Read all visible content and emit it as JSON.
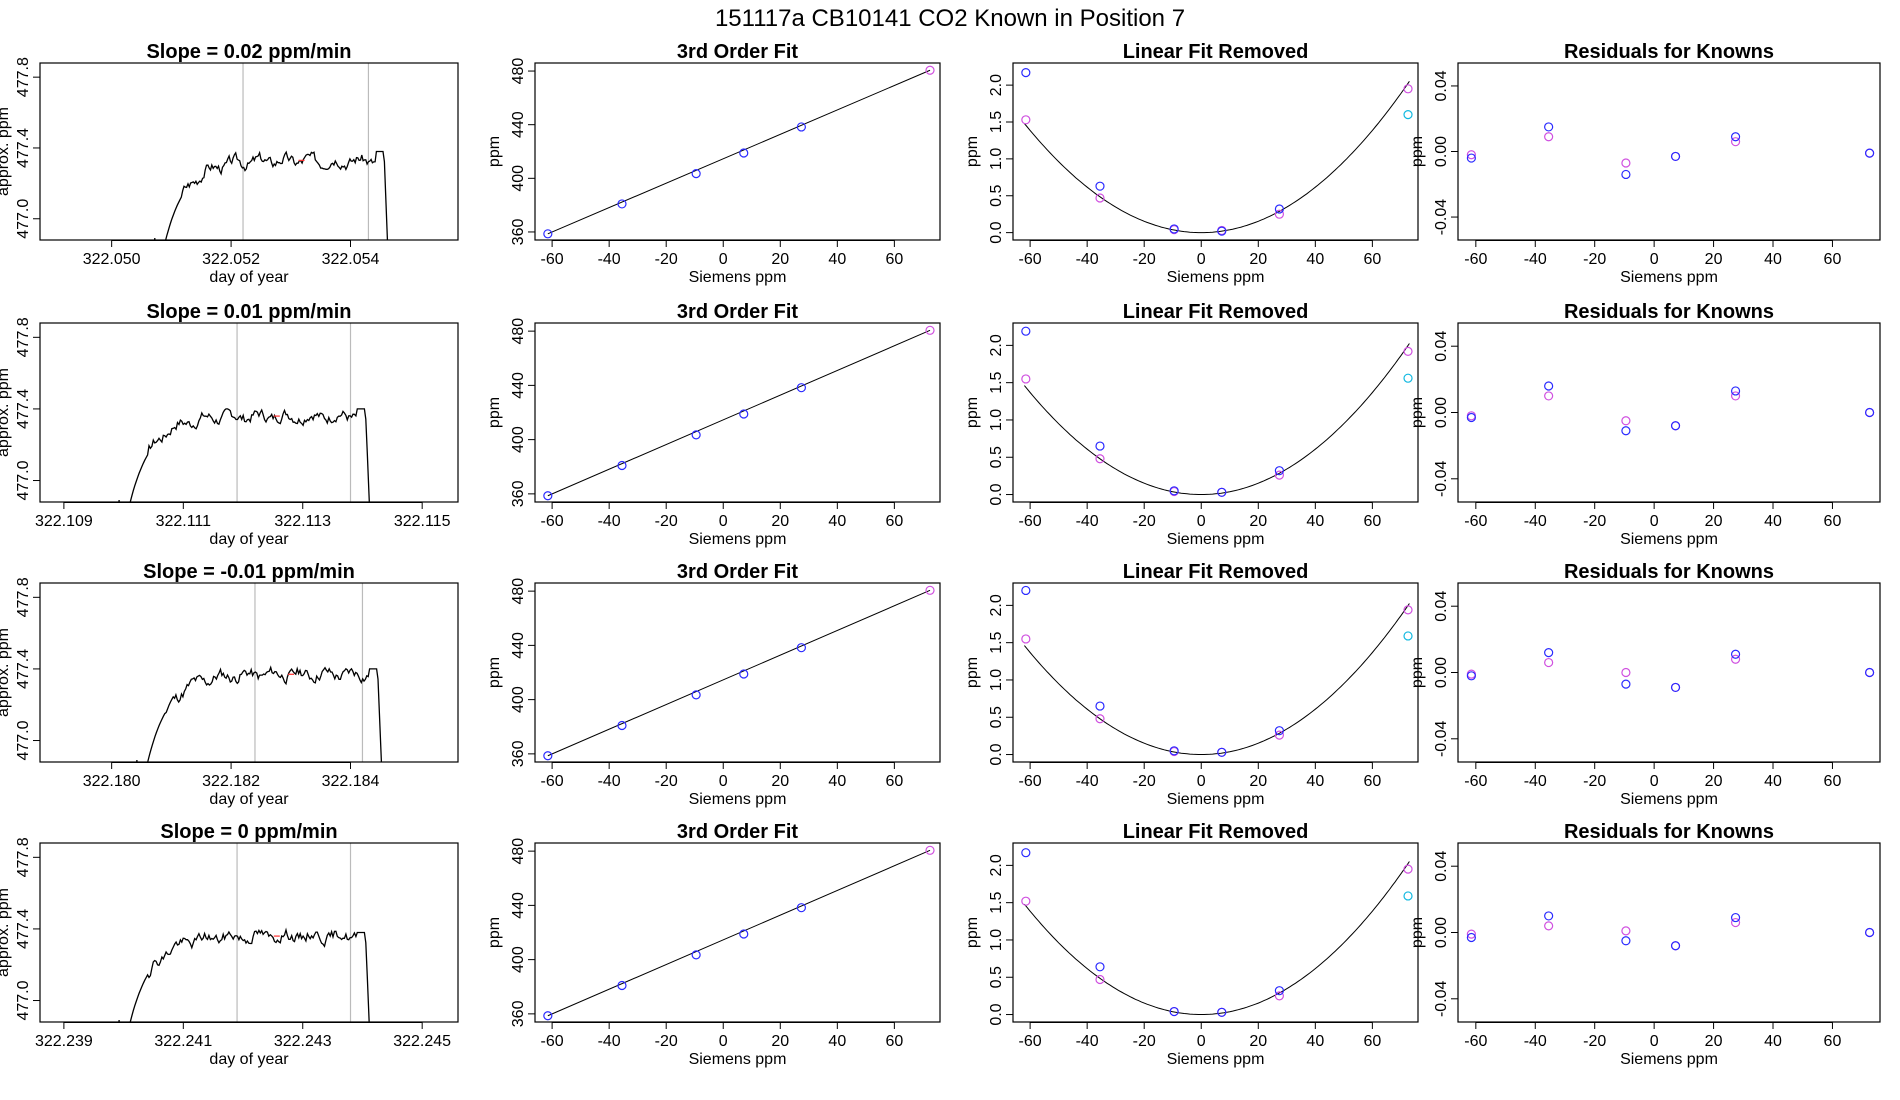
{
  "title": "151117a      CB10141    CO2 Known in Position  7",
  "colors": {
    "line": "#000000",
    "vline": "#bbbbbb",
    "blue": "#2a2aff",
    "magenta": "#d050e0",
    "cyan": "#10b8e0",
    "red": "#ff3030"
  },
  "chart_data": [
    {
      "type": "line",
      "row": 1,
      "title": "Slope =  0.02  ppm/min",
      "xlabel": "day of year",
      "ylabel": "approx. ppm",
      "xlim": [
        322.0488,
        322.0558
      ],
      "ylim": [
        476.88,
        477.88
      ],
      "xticks": [
        "322.050",
        "322.052",
        "322.054"
      ],
      "xtick_vals": [
        322.05,
        322.052,
        322.054
      ],
      "yticks": [
        "477.0",
        "477.4",
        "477.8"
      ],
      "ytick_vals": [
        477.0,
        477.4,
        477.8
      ],
      "vlines": [
        322.0522,
        322.0543
      ],
      "x_start": 322.0507,
      "x_end": 322.0547,
      "plateau": 477.33,
      "peak": 477.38,
      "seed": 3
    },
    {
      "type": "scatter",
      "row": 1,
      "title": "3rd Order Fit",
      "xlabel": "Siemens ppm",
      "ylabel": "ppm",
      "xlim": [
        -66,
        76
      ],
      "ylim": [
        354,
        486
      ],
      "xticks": [
        "-60",
        "-40",
        "-20",
        "0",
        "20",
        "40",
        "60"
      ],
      "xtick_vals": [
        -60,
        -40,
        -20,
        0,
        20,
        40,
        60
      ],
      "yticks": [
        "360",
        "400",
        "440",
        "480"
      ],
      "ytick_vals": [
        360,
        400,
        440,
        480
      ],
      "x": [
        -61.5,
        -35.5,
        -9.5,
        7.2,
        27.4,
        72.5
      ],
      "y": [
        358.6,
        380.9,
        403.5,
        418.9,
        438.3,
        480.6
      ],
      "curve": "linear"
    },
    {
      "type": "scatter",
      "row": 1,
      "title": "Linear Fit Removed",
      "xlabel": "Siemens ppm",
      "ylabel": "ppm",
      "xlim": [
        -66,
        76
      ],
      "ylim": [
        -0.1,
        2.3
      ],
      "xticks": [
        "-60",
        "-40",
        "-20",
        "0",
        "20",
        "40",
        "60"
      ],
      "xtick_vals": [
        -60,
        -40,
        -20,
        0,
        20,
        40,
        60
      ],
      "yticks": [
        "0.0",
        "0.5",
        "1.0",
        "1.5",
        "2.0"
      ],
      "ytick_vals": [
        0,
        0.5,
        1,
        1.5,
        2
      ],
      "blue": [
        [
          -61.5,
          2.17
        ],
        [
          -35.5,
          0.63
        ],
        [
          -9.5,
          0.05
        ],
        [
          7.2,
          0.02
        ],
        [
          27.4,
          0.32
        ]
      ],
      "magenta": [
        [
          -61.5,
          1.53
        ],
        [
          -35.5,
          0.47
        ],
        [
          -9.5,
          0.04
        ],
        [
          7.2,
          0.03
        ],
        [
          27.4,
          0.25
        ],
        [
          72.5,
          1.95
        ]
      ],
      "cyan": [
        [
          72.5,
          1.6
        ]
      ],
      "curve": "quad",
      "quad_a": 0.000385
    },
    {
      "type": "scatter",
      "row": 1,
      "title": "Residuals for Knowns",
      "xlabel": "Siemens ppm",
      "ylabel": "ppm",
      "xlim": [
        -66,
        76
      ],
      "ylim": [
        -0.054,
        0.054
      ],
      "xticks": [
        "-60",
        "-40",
        "-20",
        "0",
        "20",
        "40",
        "60"
      ],
      "xtick_vals": [
        -60,
        -40,
        -20,
        0,
        20,
        40,
        60
      ],
      "yticks": [
        "-0.04",
        "0.00",
        "0.04"
      ],
      "ytick_vals": [
        -0.04,
        0,
        0.04
      ],
      "blue": [
        [
          -61.5,
          -0.004
        ],
        [
          -35.5,
          0.015
        ],
        [
          -9.5,
          -0.014
        ],
        [
          7.2,
          -0.003
        ],
        [
          27.4,
          0.009
        ],
        [
          72.5,
          -0.001
        ]
      ],
      "magenta": [
        [
          -61.5,
          -0.002
        ],
        [
          -35.5,
          0.009
        ],
        [
          -9.5,
          -0.007
        ],
        [
          7.2,
          -0.003
        ],
        [
          27.4,
          0.006
        ],
        [
          72.5,
          -0.001
        ]
      ]
    },
    {
      "type": "line",
      "row": 2,
      "title": "Slope =  0.01  ppm/min",
      "xlabel": "day of year",
      "ylabel": "approx. ppm",
      "xlim": [
        322.1086,
        322.1156
      ],
      "ylim": [
        476.88,
        477.88
      ],
      "xticks": [
        "322.109",
        "322.111",
        "322.113",
        "322.115"
      ],
      "xtick_vals": [
        322.109,
        322.111,
        322.113,
        322.115
      ],
      "yticks": [
        "477.0",
        "477.4",
        "477.8"
      ],
      "ytick_vals": [
        477.0,
        477.4,
        477.8
      ],
      "vlines": [
        322.1119,
        322.1138
      ],
      "x_start": 322.1099,
      "x_end": 322.1142,
      "plateau": 477.36,
      "peak": 477.4,
      "seed": 7
    },
    {
      "type": "scatter",
      "row": 2,
      "title": "3rd Order Fit",
      "xlabel": "Siemens ppm",
      "ylabel": "ppm",
      "xlim": [
        -66,
        76
      ],
      "ylim": [
        354,
        486
      ],
      "xticks": [
        "-60",
        "-40",
        "-20",
        "0",
        "20",
        "40",
        "60"
      ],
      "xtick_vals": [
        -60,
        -40,
        -20,
        0,
        20,
        40,
        60
      ],
      "yticks": [
        "360",
        "400",
        "440",
        "480"
      ],
      "ytick_vals": [
        360,
        400,
        440,
        480
      ],
      "x": [
        -61.5,
        -35.5,
        -9.5,
        7.2,
        27.4,
        72.5
      ],
      "y": [
        358.6,
        380.9,
        403.5,
        418.9,
        438.3,
        480.6
      ],
      "curve": "linear"
    },
    {
      "type": "scatter",
      "row": 2,
      "title": "Linear Fit Removed",
      "xlabel": "Siemens ppm",
      "ylabel": "ppm",
      "xlim": [
        -66,
        76
      ],
      "ylim": [
        -0.1,
        2.3
      ],
      "xticks": [
        "-60",
        "-40",
        "-20",
        "0",
        "20",
        "40",
        "60"
      ],
      "xtick_vals": [
        -60,
        -40,
        -20,
        0,
        20,
        40,
        60
      ],
      "yticks": [
        "0.0",
        "0.5",
        "1.0",
        "1.5",
        "2.0"
      ],
      "ytick_vals": [
        0,
        0.5,
        1,
        1.5,
        2
      ],
      "blue": [
        [
          -61.5,
          2.19
        ],
        [
          -35.5,
          0.65
        ],
        [
          -9.5,
          0.05
        ],
        [
          7.2,
          0.03
        ],
        [
          27.4,
          0.32
        ]
      ],
      "magenta": [
        [
          -61.5,
          1.55
        ],
        [
          -35.5,
          0.48
        ],
        [
          -9.5,
          0.04
        ],
        [
          7.2,
          0.03
        ],
        [
          27.4,
          0.26
        ],
        [
          72.5,
          1.92
        ]
      ],
      "cyan": [
        [
          72.5,
          1.56
        ]
      ],
      "curve": "quad",
      "quad_a": 0.00038
    },
    {
      "type": "scatter",
      "row": 2,
      "title": "Residuals for Knowns",
      "xlabel": "Siemens ppm",
      "ylabel": "ppm",
      "xlim": [
        -66,
        76
      ],
      "ylim": [
        -0.054,
        0.054
      ],
      "xticks": [
        "-60",
        "-40",
        "-20",
        "0",
        "20",
        "40",
        "60"
      ],
      "xtick_vals": [
        -60,
        -40,
        -20,
        0,
        20,
        40,
        60
      ],
      "yticks": [
        "-0.04",
        "0.00",
        "0.04"
      ],
      "ytick_vals": [
        -0.04,
        0,
        0.04
      ],
      "blue": [
        [
          -61.5,
          -0.003
        ],
        [
          -35.5,
          0.016
        ],
        [
          -9.5,
          -0.011
        ],
        [
          7.2,
          -0.008
        ],
        [
          27.4,
          0.013
        ],
        [
          72.5,
          0.0
        ]
      ],
      "magenta": [
        [
          -61.5,
          -0.002
        ],
        [
          -35.5,
          0.01
        ],
        [
          -9.5,
          -0.005
        ],
        [
          7.2,
          -0.008
        ],
        [
          27.4,
          0.01
        ],
        [
          72.5,
          0.0
        ]
      ]
    },
    {
      "type": "line",
      "row": 3,
      "title": "Slope =  -0.01  ppm/min",
      "xlabel": "day of year",
      "ylabel": "approx. ppm",
      "xlim": [
        322.1788,
        322.1858
      ],
      "ylim": [
        476.88,
        477.88
      ],
      "xticks": [
        "322.180",
        "322.182",
        "322.184"
      ],
      "xtick_vals": [
        322.18,
        322.182,
        322.184
      ],
      "yticks": [
        "477.0",
        "477.4",
        "477.8"
      ],
      "ytick_vals": [
        477.0,
        477.4,
        477.8
      ],
      "vlines": [
        322.1824,
        322.1842
      ],
      "x_start": 322.1804,
      "x_end": 322.1846,
      "plateau": 477.37,
      "peak": 477.4,
      "seed": 11
    },
    {
      "type": "scatter",
      "row": 3,
      "title": "3rd Order Fit",
      "xlabel": "Siemens ppm",
      "ylabel": "ppm",
      "xlim": [
        -66,
        76
      ],
      "ylim": [
        354,
        486
      ],
      "xticks": [
        "-60",
        "-40",
        "-20",
        "0",
        "20",
        "40",
        "60"
      ],
      "xtick_vals": [
        -60,
        -40,
        -20,
        0,
        20,
        40,
        60
      ],
      "yticks": [
        "360",
        "400",
        "440",
        "480"
      ],
      "ytick_vals": [
        360,
        400,
        440,
        480
      ],
      "x": [
        -61.5,
        -35.5,
        -9.5,
        7.2,
        27.4,
        72.5
      ],
      "y": [
        358.6,
        380.9,
        403.5,
        418.9,
        438.3,
        480.6
      ],
      "curve": "linear"
    },
    {
      "type": "scatter",
      "row": 3,
      "title": "Linear Fit Removed",
      "xlabel": "Siemens ppm",
      "ylabel": "ppm",
      "xlim": [
        -66,
        76
      ],
      "ylim": [
        -0.1,
        2.3
      ],
      "xticks": [
        "-60",
        "-40",
        "-20",
        "0",
        "20",
        "40",
        "60"
      ],
      "xtick_vals": [
        -60,
        -40,
        -20,
        0,
        20,
        40,
        60
      ],
      "yticks": [
        "0.0",
        "0.5",
        "1.0",
        "1.5",
        "2.0"
      ],
      "ytick_vals": [
        0,
        0.5,
        1,
        1.5,
        2
      ],
      "blue": [
        [
          -61.5,
          2.2
        ],
        [
          -35.5,
          0.65
        ],
        [
          -9.5,
          0.05
        ],
        [
          7.2,
          0.03
        ],
        [
          27.4,
          0.32
        ]
      ],
      "magenta": [
        [
          -61.5,
          1.55
        ],
        [
          -35.5,
          0.48
        ],
        [
          -9.5,
          0.04
        ],
        [
          7.2,
          0.03
        ],
        [
          27.4,
          0.26
        ],
        [
          72.5,
          1.94
        ]
      ],
      "cyan": [
        [
          72.5,
          1.59
        ]
      ],
      "curve": "quad",
      "quad_a": 0.00038
    },
    {
      "type": "scatter",
      "row": 3,
      "title": "Residuals for Knowns",
      "xlabel": "Siemens ppm",
      "ylabel": "ppm",
      "xlim": [
        -66,
        76
      ],
      "ylim": [
        -0.054,
        0.054
      ],
      "xticks": [
        "-60",
        "-40",
        "-20",
        "0",
        "20",
        "40",
        "60"
      ],
      "xtick_vals": [
        -60,
        -40,
        -20,
        0,
        20,
        40,
        60
      ],
      "yticks": [
        "-0.04",
        "0.00",
        "0.04"
      ],
      "ytick_vals": [
        -0.04,
        0,
        0.04
      ],
      "blue": [
        [
          -61.5,
          -0.002
        ],
        [
          -35.5,
          0.012
        ],
        [
          -9.5,
          -0.007
        ],
        [
          7.2,
          -0.009
        ],
        [
          27.4,
          0.011
        ],
        [
          72.5,
          0.0
        ]
      ],
      "magenta": [
        [
          -61.5,
          -0.001
        ],
        [
          -35.5,
          0.006
        ],
        [
          -9.5,
          0.0
        ],
        [
          7.2,
          -0.009
        ],
        [
          27.4,
          0.008
        ],
        [
          72.5,
          0.0
        ]
      ]
    },
    {
      "type": "line",
      "row": 4,
      "title": "Slope =  0  ppm/min",
      "xlabel": "day of year",
      "ylabel": "approx. ppm",
      "xlim": [
        322.2386,
        322.2456
      ],
      "ylim": [
        476.88,
        477.88
      ],
      "xticks": [
        "322.239",
        "322.241",
        "322.243",
        "322.245"
      ],
      "xtick_vals": [
        322.239,
        322.241,
        322.243,
        322.245
      ],
      "yticks": [
        "477.0",
        "477.4",
        "477.8"
      ],
      "ytick_vals": [
        477.0,
        477.4,
        477.8
      ],
      "vlines": [
        322.2419,
        322.2438
      ],
      "x_start": 322.2399,
      "x_end": 322.2442,
      "plateau": 477.36,
      "peak": 477.38,
      "seed": 19
    },
    {
      "type": "scatter",
      "row": 4,
      "title": "3rd Order Fit",
      "xlabel": "Siemens ppm",
      "ylabel": "ppm",
      "xlim": [
        -66,
        76
      ],
      "ylim": [
        354,
        486
      ],
      "xticks": [
        "-60",
        "-40",
        "-20",
        "0",
        "20",
        "40",
        "60"
      ],
      "xtick_vals": [
        -60,
        -40,
        -20,
        0,
        20,
        40,
        60
      ],
      "yticks": [
        "360",
        "400",
        "440",
        "480"
      ],
      "ytick_vals": [
        360,
        400,
        440,
        480
      ],
      "x": [
        -61.5,
        -35.5,
        -9.5,
        7.2,
        27.4,
        72.5
      ],
      "y": [
        358.6,
        380.9,
        403.5,
        418.9,
        438.3,
        480.6
      ],
      "curve": "linear"
    },
    {
      "type": "scatter",
      "row": 4,
      "title": "Linear Fit Removed",
      "xlabel": "Siemens ppm",
      "ylabel": "ppm",
      "xlim": [
        -66,
        76
      ],
      "ylim": [
        -0.1,
        2.3
      ],
      "xticks": [
        "-60",
        "-40",
        "-20",
        "0",
        "20",
        "40",
        "60"
      ],
      "xtick_vals": [
        -60,
        -40,
        -20,
        0,
        20,
        40,
        60
      ],
      "yticks": [
        "0.0",
        "0.5",
        "1.0",
        "1.5",
        "2.0"
      ],
      "ytick_vals": [
        0,
        0.5,
        1,
        1.5,
        2
      ],
      "blue": [
        [
          -61.5,
          2.17
        ],
        [
          -35.5,
          0.64
        ],
        [
          -9.5,
          0.04
        ],
        [
          7.2,
          0.03
        ],
        [
          27.4,
          0.32
        ]
      ],
      "magenta": [
        [
          -61.5,
          1.52
        ],
        [
          -35.5,
          0.47
        ],
        [
          -9.5,
          0.04
        ],
        [
          7.2,
          0.03
        ],
        [
          27.4,
          0.25
        ],
        [
          72.5,
          1.95
        ]
      ],
      "cyan": [
        [
          72.5,
          1.59
        ]
      ],
      "curve": "quad",
      "quad_a": 0.000385
    },
    {
      "type": "scatter",
      "row": 4,
      "title": "Residuals for Knowns",
      "xlabel": "Siemens ppm",
      "ylabel": "ppm",
      "xlim": [
        -66,
        76
      ],
      "ylim": [
        -0.054,
        0.054
      ],
      "xticks": [
        "-60",
        "-40",
        "-20",
        "0",
        "20",
        "40",
        "60"
      ],
      "xtick_vals": [
        -60,
        -40,
        -20,
        0,
        20,
        40,
        60
      ],
      "yticks": [
        "-0.04",
        "0.00",
        "0.04"
      ],
      "ytick_vals": [
        -0.04,
        0,
        0.04
      ],
      "blue": [
        [
          -61.5,
          -0.003
        ],
        [
          -35.5,
          0.01
        ],
        [
          -9.5,
          -0.005
        ],
        [
          7.2,
          -0.008
        ],
        [
          27.4,
          0.009
        ],
        [
          72.5,
          0.0
        ]
      ],
      "magenta": [
        [
          -61.5,
          -0.001
        ],
        [
          -35.5,
          0.004
        ],
        [
          -9.5,
          0.001
        ],
        [
          7.2,
          -0.008
        ],
        [
          27.4,
          0.006
        ],
        [
          72.5,
          0.0
        ]
      ]
    }
  ]
}
